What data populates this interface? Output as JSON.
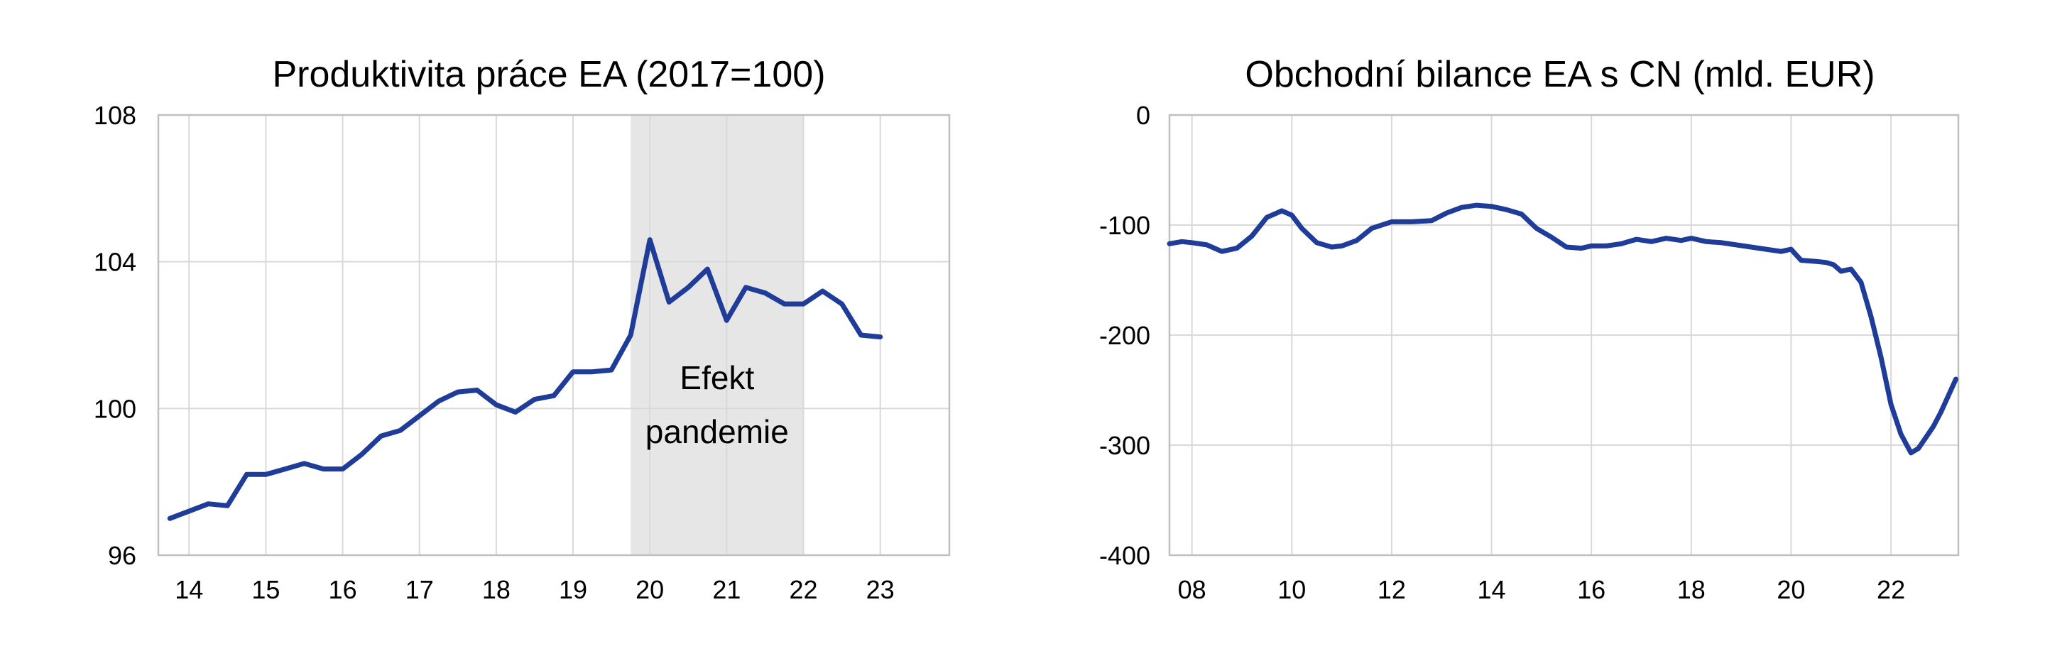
{
  "colors": {
    "series": "#1f3c99",
    "grid": "#d9d9d9",
    "frame": "#bfbfbf",
    "shade": "#e6e6e6"
  },
  "chart_data": [
    {
      "type": "line",
      "title": "Produktivita práce EA (2017=100)",
      "xlabel": "",
      "ylabel": "",
      "xlim": [
        2013.6,
        2023.9
      ],
      "ylim": [
        96,
        108
      ],
      "x_ticks": [
        2014,
        2015,
        2016,
        2017,
        2018,
        2019,
        2020,
        2021,
        2022,
        2023
      ],
      "x_tick_labels": [
        "14",
        "15",
        "16",
        "17",
        "18",
        "19",
        "20",
        "21",
        "22",
        "23"
      ],
      "y_ticks": [
        96,
        100,
        104,
        108
      ],
      "y_tick_labels": [
        "96",
        "100",
        "104",
        "108"
      ],
      "grid": true,
      "legend": "none",
      "shaded_region": {
        "x_from": 2019.75,
        "x_to": 2022.0,
        "label_lines": [
          "Efekt",
          "pandemie"
        ]
      },
      "series": [
        {
          "x": [
            2013.75,
            2014.0,
            2014.25,
            2014.5,
            2014.75,
            2015.0,
            2015.25,
            2015.5,
            2015.75,
            2016.0,
            2016.25,
            2016.5,
            2016.75,
            2017.0,
            2017.25,
            2017.5,
            2017.75,
            2018.0,
            2018.25,
            2018.5,
            2018.75,
            2019.0,
            2019.25,
            2019.5,
            2019.75,
            2020.0,
            2020.25,
            2020.5,
            2020.75,
            2021.0,
            2021.25,
            2021.5,
            2021.75,
            2022.0,
            2022.25,
            2022.5,
            2022.75,
            2023.0
          ],
          "values": [
            97.0,
            97.2,
            97.4,
            97.35,
            98.2,
            98.2,
            98.35,
            98.5,
            98.35,
            98.35,
            98.75,
            99.25,
            99.4,
            99.8,
            100.2,
            100.45,
            100.5,
            100.1,
            99.9,
            100.25,
            100.35,
            101.0,
            101.0,
            101.05,
            102.0,
            104.6,
            102.9,
            103.3,
            103.8,
            102.4,
            103.3,
            103.15,
            102.85,
            102.85,
            103.2,
            102.85,
            102.0,
            101.95
          ]
        }
      ]
    },
    {
      "type": "line",
      "title": "Obchodní bilance EA s CN (mld. EUR)",
      "xlabel": "",
      "ylabel": "",
      "xlim": [
        2007.55,
        2023.35
      ],
      "ylim": [
        -400,
        0
      ],
      "x_ticks": [
        2008,
        2010,
        2012,
        2014,
        2016,
        2018,
        2020,
        2022
      ],
      "x_tick_labels": [
        "08",
        "10",
        "12",
        "14",
        "16",
        "18",
        "20",
        "22"
      ],
      "y_ticks": [
        -400,
        -300,
        -200,
        -100,
        0
      ],
      "y_tick_labels": [
        "-400",
        "-300",
        "-200",
        "-100",
        "0"
      ],
      "grid": true,
      "legend": "none",
      "series": [
        {
          "x": [
            2007.55,
            2007.8,
            2008.0,
            2008.3,
            2008.6,
            2008.9,
            2009.2,
            2009.5,
            2009.8,
            2010.0,
            2010.2,
            2010.5,
            2010.8,
            2011.0,
            2011.3,
            2011.6,
            2012.0,
            2012.4,
            2012.8,
            2013.1,
            2013.4,
            2013.7,
            2014.0,
            2014.3,
            2014.6,
            2014.9,
            2015.2,
            2015.5,
            2015.8,
            2016.0,
            2016.3,
            2016.6,
            2016.9,
            2017.2,
            2017.5,
            2017.8,
            2018.0,
            2018.3,
            2018.6,
            2018.9,
            2019.2,
            2019.5,
            2019.8,
            2020.0,
            2020.2,
            2020.5,
            2020.7,
            2020.85,
            2021.0,
            2021.2,
            2021.4,
            2021.6,
            2021.8,
            2022.0,
            2022.2,
            2022.4,
            2022.55,
            2022.7,
            2022.85,
            2023.0,
            2023.15,
            2023.3
          ],
          "values": [
            -117,
            -115,
            -116,
            -118,
            -124,
            -121,
            -110,
            -93,
            -87,
            -91,
            -103,
            -116,
            -120,
            -119,
            -114,
            -103,
            -97,
            -97,
            -96,
            -89,
            -84,
            -82,
            -83,
            -86,
            -90,
            -103,
            -111,
            -120,
            -121,
            -119,
            -119,
            -117,
            -113,
            -115,
            -112,
            -114,
            -112,
            -115,
            -116,
            -118,
            -120,
            -122,
            -124,
            -122,
            -132,
            -133,
            -134,
            -136,
            -142,
            -140,
            -152,
            -183,
            -220,
            -263,
            -290,
            -307,
            -303,
            -293,
            -283,
            -270,
            -255,
            -240
          ]
        }
      ]
    }
  ]
}
